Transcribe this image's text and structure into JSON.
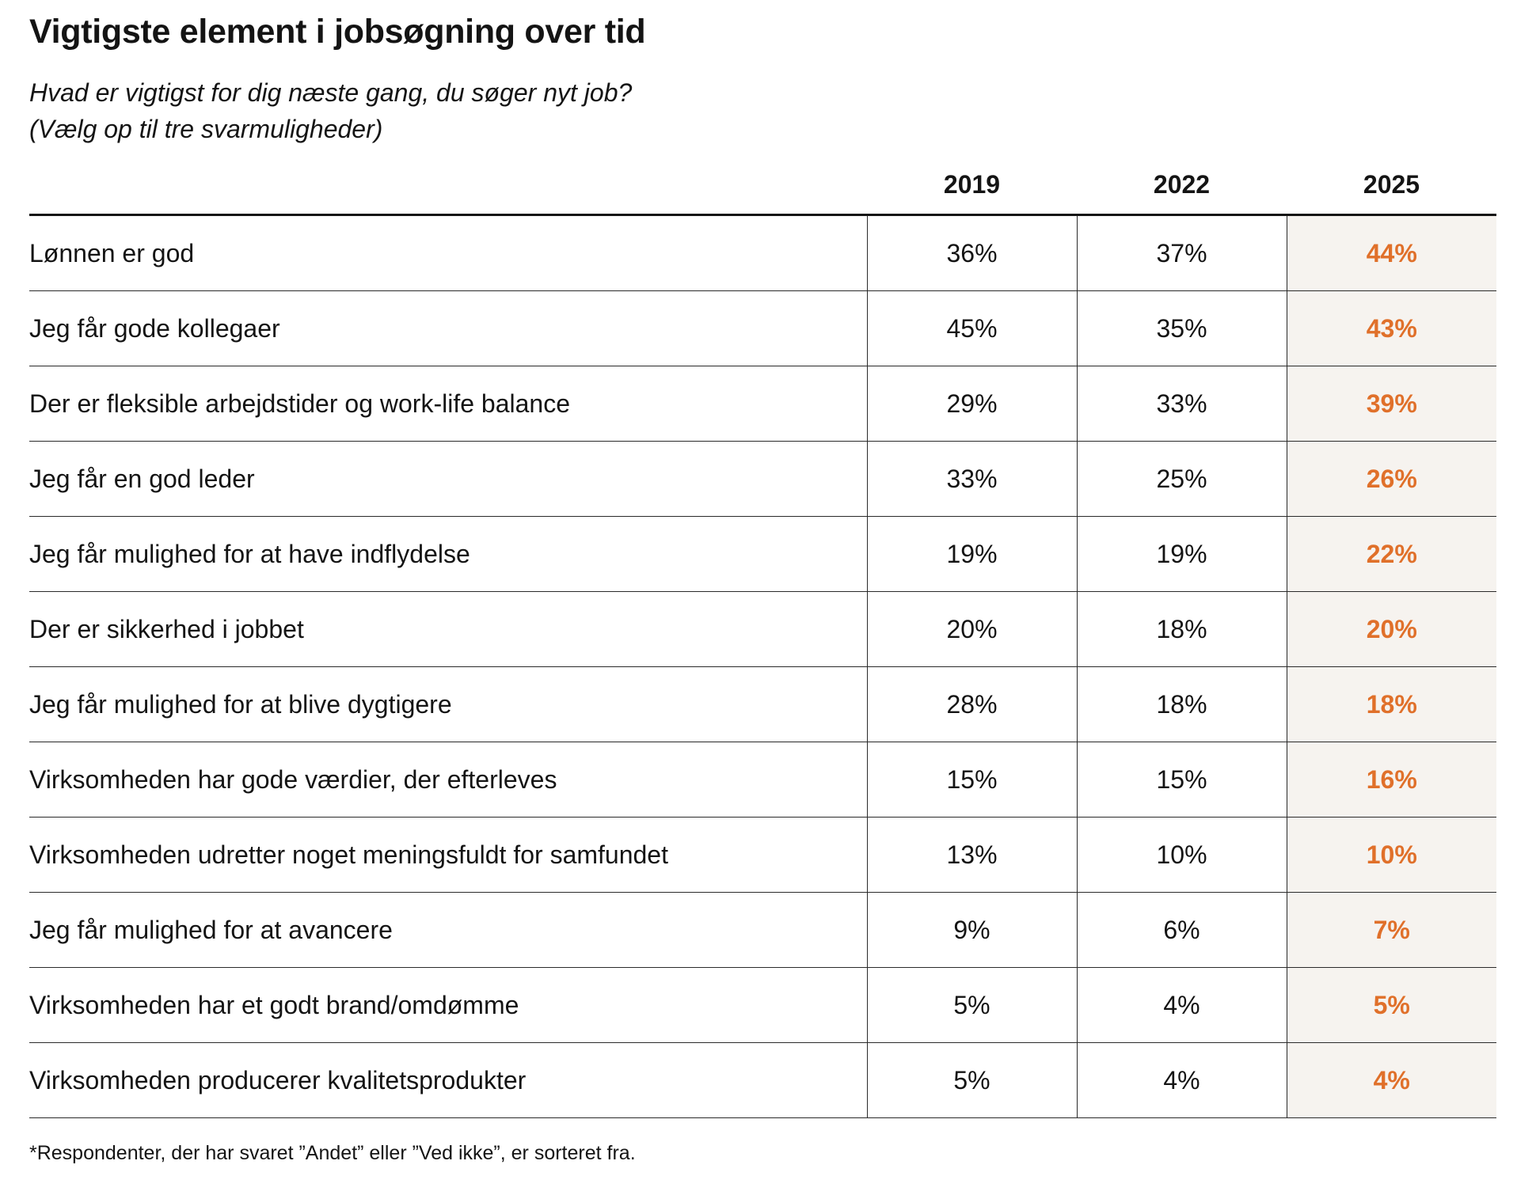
{
  "colors": {
    "text": "#141414",
    "highlight_text": "#e0702a",
    "highlight_bg": "#f6f3ef",
    "rule": "#2a2a2a"
  },
  "chart_data": {
    "type": "table",
    "title": "Vigtigste element i jobsøgning over tid",
    "subtitle_lines": [
      "Hvad er vigtigst for dig næste gang, du søger nyt job?",
      "(Vælg op til tre svarmuligheder)"
    ],
    "columns": [
      "2019",
      "2022",
      "2025"
    ],
    "highlight_column": "2025",
    "rows": [
      {
        "label": "Lønnen er god",
        "values": [
          "36%",
          "37%",
          "44%"
        ]
      },
      {
        "label": "Jeg får gode kollegaer",
        "values": [
          "45%",
          "35%",
          "43%"
        ]
      },
      {
        "label": "Der er fleksible arbejdstider og work-life balance",
        "values": [
          "29%",
          "33%",
          "39%"
        ]
      },
      {
        "label": "Jeg får en god leder",
        "values": [
          "33%",
          "25%",
          "26%"
        ]
      },
      {
        "label": "Jeg får mulighed for at have indflydelse",
        "values": [
          "19%",
          "19%",
          "22%"
        ]
      },
      {
        "label": "Der er sikkerhed i jobbet",
        "values": [
          "20%",
          "18%",
          "20%"
        ]
      },
      {
        "label": "Jeg får mulighed for at blive dygtigere",
        "values": [
          "28%",
          "18%",
          "18%"
        ]
      },
      {
        "label": "Virksomheden har gode værdier, der efterleves",
        "values": [
          "15%",
          "15%",
          "16%"
        ]
      },
      {
        "label": "Virksomheden udretter noget meningsfuldt for samfundet",
        "values": [
          "13%",
          "10%",
          "10%"
        ]
      },
      {
        "label": "Jeg får mulighed for at avancere",
        "values": [
          "9%",
          "6%",
          "7%"
        ]
      },
      {
        "label": "Virksomheden har et godt brand/omdømme",
        "values": [
          "5%",
          "4%",
          "5%"
        ]
      },
      {
        "label": "Virksomheden producerer kvalitetsprodukter",
        "values": [
          "5%",
          "4%",
          "4%"
        ]
      }
    ],
    "footnote": "*Respondenter, der har svaret ”Andet” eller ”Ved ikke”, er sorteret fra."
  }
}
